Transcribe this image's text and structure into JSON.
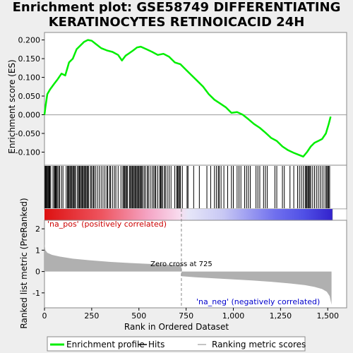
{
  "title_line1": "Enrichment plot: GSE58749 DIFFERENTIATING",
  "title_line2": "KERATINOCYTES RETINOICACID 24H",
  "colors": {
    "es_line": "#00ee00",
    "pos_label": "#cc0000",
    "neg_label": "#0000cc",
    "metric_fill": "#b0b0b0",
    "zero_line": "#888888"
  },
  "chart_data": {
    "type": "line",
    "x_range": [
      0,
      1600
    ],
    "x_ticks": [
      0,
      250,
      500,
      750,
      1000,
      1250,
      1500
    ],
    "x_tick_labels": [
      "0",
      "250",
      "500",
      "750",
      "1,000",
      "1,250",
      "1,500"
    ],
    "xlabel": "Rank in Ordered Dataset",
    "total_genes": 1520,
    "es_panel": {
      "ylabel": "Enrichment score (ES)",
      "ylim": [
        -0.135,
        0.22
      ],
      "y_ticks": [
        -0.1,
        -0.05,
        0.0,
        0.05,
        0.1,
        0.15,
        0.2
      ],
      "y_tick_labels": [
        "-0.100",
        "-0.050",
        "0.000",
        "0.050",
        "0.100",
        "0.150",
        "0.200"
      ],
      "points": [
        [
          0,
          0
        ],
        [
          5,
          0.02
        ],
        [
          15,
          0.055
        ],
        [
          30,
          0.068
        ],
        [
          50,
          0.082
        ],
        [
          70,
          0.095
        ],
        [
          90,
          0.11
        ],
        [
          110,
          0.105
        ],
        [
          130,
          0.14
        ],
        [
          150,
          0.15
        ],
        [
          170,
          0.175
        ],
        [
          190,
          0.185
        ],
        [
          210,
          0.195
        ],
        [
          230,
          0.2
        ],
        [
          250,
          0.198
        ],
        [
          270,
          0.19
        ],
        [
          300,
          0.178
        ],
        [
          330,
          0.172
        ],
        [
          360,
          0.168
        ],
        [
          390,
          0.16
        ],
        [
          410,
          0.145
        ],
        [
          430,
          0.158
        ],
        [
          450,
          0.165
        ],
        [
          470,
          0.172
        ],
        [
          490,
          0.18
        ],
        [
          510,
          0.182
        ],
        [
          540,
          0.175
        ],
        [
          570,
          0.168
        ],
        [
          600,
          0.16
        ],
        [
          630,
          0.163
        ],
        [
          660,
          0.155
        ],
        [
          690,
          0.14
        ],
        [
          720,
          0.135
        ],
        [
          750,
          0.12
        ],
        [
          780,
          0.105
        ],
        [
          810,
          0.09
        ],
        [
          840,
          0.075
        ],
        [
          870,
          0.055
        ],
        [
          900,
          0.04
        ],
        [
          930,
          0.03
        ],
        [
          960,
          0.02
        ],
        [
          990,
          0.005
        ],
        [
          1020,
          0.007
        ],
        [
          1050,
          0.0
        ],
        [
          1080,
          -0.012
        ],
        [
          1110,
          -0.025
        ],
        [
          1140,
          -0.035
        ],
        [
          1170,
          -0.048
        ],
        [
          1200,
          -0.062
        ],
        [
          1230,
          -0.07
        ],
        [
          1260,
          -0.085
        ],
        [
          1290,
          -0.095
        ],
        [
          1320,
          -0.102
        ],
        [
          1350,
          -0.108
        ],
        [
          1370,
          -0.112
        ],
        [
          1390,
          -0.1
        ],
        [
          1410,
          -0.085
        ],
        [
          1430,
          -0.075
        ],
        [
          1450,
          -0.07
        ],
        [
          1470,
          -0.065
        ],
        [
          1490,
          -0.05
        ],
        [
          1505,
          -0.025
        ],
        [
          1515,
          -0.005
        ]
      ]
    },
    "hits": [
      3,
      6,
      9,
      12,
      16,
      20,
      24,
      28,
      33,
      45,
      52,
      56,
      60,
      63,
      68,
      75,
      80,
      90,
      98,
      115,
      122,
      126,
      130,
      135,
      140,
      145,
      150,
      155,
      160,
      165,
      175,
      180,
      185,
      190,
      195,
      200,
      205,
      210,
      215,
      220,
      225,
      230,
      235,
      245,
      250,
      258,
      262,
      270,
      280,
      290,
      300,
      310,
      320,
      330,
      335,
      345,
      350,
      360,
      370,
      378,
      390,
      405,
      415,
      420,
      425,
      430,
      435,
      440,
      450,
      455,
      460,
      465,
      470,
      475,
      480,
      485,
      490,
      495,
      500,
      505,
      510,
      515,
      520,
      528,
      535,
      545,
      550,
      560,
      570,
      578,
      585,
      590,
      600,
      610,
      615,
      620,
      625,
      635,
      640,
      650,
      660,
      670,
      690,
      700,
      705,
      710,
      715,
      720,
      730,
      755,
      760,
      790,
      820,
      860,
      880,
      900,
      910,
      920,
      925,
      935,
      950,
      970,
      990,
      1000,
      1020,
      1030,
      1040,
      1060,
      1070,
      1080,
      1090,
      1120,
      1130,
      1140,
      1160,
      1170,
      1180,
      1220,
      1230,
      1260,
      1270,
      1300,
      1320,
      1340,
      1350,
      1360,
      1370,
      1380,
      1385,
      1390,
      1395,
      1400,
      1405,
      1410,
      1420,
      1430,
      1440,
      1450,
      1460,
      1470,
      1480,
      1490,
      1495,
      1500,
      1505,
      1510
    ],
    "metric_panel": {
      "ylabel": "Ranked list metric (PreRanked)",
      "ylim": [
        -1.7,
        2.4
      ],
      "y_ticks": [
        -1,
        0,
        1,
        2
      ],
      "y_tick_labels": [
        "-1",
        "0",
        "1",
        "2"
      ],
      "zero_cross_rank": 725,
      "zero_cross_label": "Zero cross at 725",
      "pos_label": "'na_pos' (positively correlated)",
      "neg_label": "'na_neg' (negatively correlated)",
      "profile": [
        [
          0,
          1.3
        ],
        [
          5,
          1.0
        ],
        [
          15,
          0.88
        ],
        [
          40,
          0.78
        ],
        [
          80,
          0.7
        ],
        [
          150,
          0.6
        ],
        [
          250,
          0.52
        ],
        [
          350,
          0.45
        ],
        [
          450,
          0.4
        ],
        [
          550,
          0.36
        ],
        [
          650,
          0.32
        ],
        [
          724,
          0.3
        ],
        [
          726,
          -0.22
        ],
        [
          800,
          -0.27
        ],
        [
          900,
          -0.32
        ],
        [
          1000,
          -0.37
        ],
        [
          1100,
          -0.42
        ],
        [
          1200,
          -0.48
        ],
        [
          1300,
          -0.56
        ],
        [
          1380,
          -0.64
        ],
        [
          1430,
          -0.72
        ],
        [
          1470,
          -0.82
        ],
        [
          1495,
          -0.95
        ],
        [
          1510,
          -1.15
        ],
        [
          1520,
          -1.55
        ]
      ]
    },
    "legend": [
      {
        "name": "Enrichment profile",
        "color": "#00ee00",
        "kind": "line"
      },
      {
        "name": "Hits",
        "color": "#000000",
        "kind": "line"
      },
      {
        "name": "Ranking metric scores",
        "color": "#b0b0b0",
        "kind": "line"
      }
    ]
  }
}
